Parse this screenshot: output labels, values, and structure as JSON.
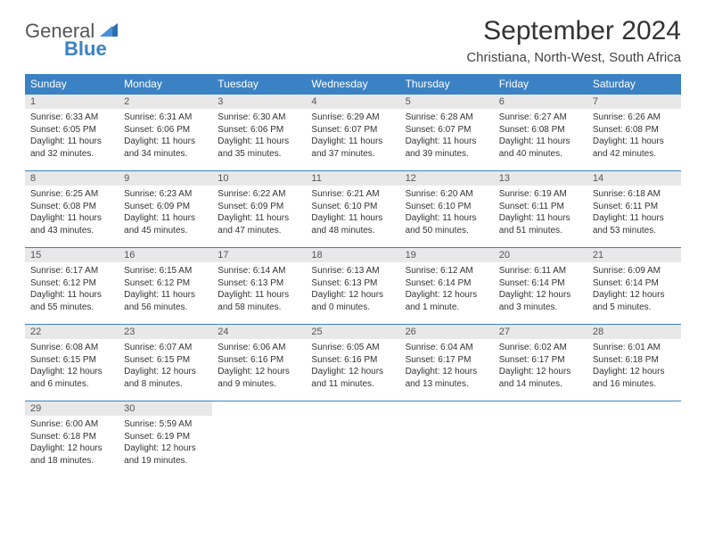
{
  "logo": {
    "primary": "General",
    "secondary": "Blue"
  },
  "title": "September 2024",
  "location": "Christiana, North-West, South Africa",
  "colors": {
    "header_bg": "#3b82c4",
    "header_text": "#ffffff",
    "daynum_bg": "#e8e8e8",
    "border": "#3b82c4",
    "text": "#333333",
    "background": "#ffffff"
  },
  "weekdays": [
    "Sunday",
    "Monday",
    "Tuesday",
    "Wednesday",
    "Thursday",
    "Friday",
    "Saturday"
  ],
  "weeks": [
    [
      {
        "n": "1",
        "sunrise": "Sunrise: 6:33 AM",
        "sunset": "Sunset: 6:05 PM",
        "day1": "Daylight: 11 hours",
        "day2": "and 32 minutes."
      },
      {
        "n": "2",
        "sunrise": "Sunrise: 6:31 AM",
        "sunset": "Sunset: 6:06 PM",
        "day1": "Daylight: 11 hours",
        "day2": "and 34 minutes."
      },
      {
        "n": "3",
        "sunrise": "Sunrise: 6:30 AM",
        "sunset": "Sunset: 6:06 PM",
        "day1": "Daylight: 11 hours",
        "day2": "and 35 minutes."
      },
      {
        "n": "4",
        "sunrise": "Sunrise: 6:29 AM",
        "sunset": "Sunset: 6:07 PM",
        "day1": "Daylight: 11 hours",
        "day2": "and 37 minutes."
      },
      {
        "n": "5",
        "sunrise": "Sunrise: 6:28 AM",
        "sunset": "Sunset: 6:07 PM",
        "day1": "Daylight: 11 hours",
        "day2": "and 39 minutes."
      },
      {
        "n": "6",
        "sunrise": "Sunrise: 6:27 AM",
        "sunset": "Sunset: 6:08 PM",
        "day1": "Daylight: 11 hours",
        "day2": "and 40 minutes."
      },
      {
        "n": "7",
        "sunrise": "Sunrise: 6:26 AM",
        "sunset": "Sunset: 6:08 PM",
        "day1": "Daylight: 11 hours",
        "day2": "and 42 minutes."
      }
    ],
    [
      {
        "n": "8",
        "sunrise": "Sunrise: 6:25 AM",
        "sunset": "Sunset: 6:08 PM",
        "day1": "Daylight: 11 hours",
        "day2": "and 43 minutes."
      },
      {
        "n": "9",
        "sunrise": "Sunrise: 6:23 AM",
        "sunset": "Sunset: 6:09 PM",
        "day1": "Daylight: 11 hours",
        "day2": "and 45 minutes."
      },
      {
        "n": "10",
        "sunrise": "Sunrise: 6:22 AM",
        "sunset": "Sunset: 6:09 PM",
        "day1": "Daylight: 11 hours",
        "day2": "and 47 minutes."
      },
      {
        "n": "11",
        "sunrise": "Sunrise: 6:21 AM",
        "sunset": "Sunset: 6:10 PM",
        "day1": "Daylight: 11 hours",
        "day2": "and 48 minutes."
      },
      {
        "n": "12",
        "sunrise": "Sunrise: 6:20 AM",
        "sunset": "Sunset: 6:10 PM",
        "day1": "Daylight: 11 hours",
        "day2": "and 50 minutes."
      },
      {
        "n": "13",
        "sunrise": "Sunrise: 6:19 AM",
        "sunset": "Sunset: 6:11 PM",
        "day1": "Daylight: 11 hours",
        "day2": "and 51 minutes."
      },
      {
        "n": "14",
        "sunrise": "Sunrise: 6:18 AM",
        "sunset": "Sunset: 6:11 PM",
        "day1": "Daylight: 11 hours",
        "day2": "and 53 minutes."
      }
    ],
    [
      {
        "n": "15",
        "sunrise": "Sunrise: 6:17 AM",
        "sunset": "Sunset: 6:12 PM",
        "day1": "Daylight: 11 hours",
        "day2": "and 55 minutes."
      },
      {
        "n": "16",
        "sunrise": "Sunrise: 6:15 AM",
        "sunset": "Sunset: 6:12 PM",
        "day1": "Daylight: 11 hours",
        "day2": "and 56 minutes."
      },
      {
        "n": "17",
        "sunrise": "Sunrise: 6:14 AM",
        "sunset": "Sunset: 6:13 PM",
        "day1": "Daylight: 11 hours",
        "day2": "and 58 minutes."
      },
      {
        "n": "18",
        "sunrise": "Sunrise: 6:13 AM",
        "sunset": "Sunset: 6:13 PM",
        "day1": "Daylight: 12 hours",
        "day2": "and 0 minutes."
      },
      {
        "n": "19",
        "sunrise": "Sunrise: 6:12 AM",
        "sunset": "Sunset: 6:14 PM",
        "day1": "Daylight: 12 hours",
        "day2": "and 1 minute."
      },
      {
        "n": "20",
        "sunrise": "Sunrise: 6:11 AM",
        "sunset": "Sunset: 6:14 PM",
        "day1": "Daylight: 12 hours",
        "day2": "and 3 minutes."
      },
      {
        "n": "21",
        "sunrise": "Sunrise: 6:09 AM",
        "sunset": "Sunset: 6:14 PM",
        "day1": "Daylight: 12 hours",
        "day2": "and 5 minutes."
      }
    ],
    [
      {
        "n": "22",
        "sunrise": "Sunrise: 6:08 AM",
        "sunset": "Sunset: 6:15 PM",
        "day1": "Daylight: 12 hours",
        "day2": "and 6 minutes."
      },
      {
        "n": "23",
        "sunrise": "Sunrise: 6:07 AM",
        "sunset": "Sunset: 6:15 PM",
        "day1": "Daylight: 12 hours",
        "day2": "and 8 minutes."
      },
      {
        "n": "24",
        "sunrise": "Sunrise: 6:06 AM",
        "sunset": "Sunset: 6:16 PM",
        "day1": "Daylight: 12 hours",
        "day2": "and 9 minutes."
      },
      {
        "n": "25",
        "sunrise": "Sunrise: 6:05 AM",
        "sunset": "Sunset: 6:16 PM",
        "day1": "Daylight: 12 hours",
        "day2": "and 11 minutes."
      },
      {
        "n": "26",
        "sunrise": "Sunrise: 6:04 AM",
        "sunset": "Sunset: 6:17 PM",
        "day1": "Daylight: 12 hours",
        "day2": "and 13 minutes."
      },
      {
        "n": "27",
        "sunrise": "Sunrise: 6:02 AM",
        "sunset": "Sunset: 6:17 PM",
        "day1": "Daylight: 12 hours",
        "day2": "and 14 minutes."
      },
      {
        "n": "28",
        "sunrise": "Sunrise: 6:01 AM",
        "sunset": "Sunset: 6:18 PM",
        "day1": "Daylight: 12 hours",
        "day2": "and 16 minutes."
      }
    ],
    [
      {
        "n": "29",
        "sunrise": "Sunrise: 6:00 AM",
        "sunset": "Sunset: 6:18 PM",
        "day1": "Daylight: 12 hours",
        "day2": "and 18 minutes."
      },
      {
        "n": "30",
        "sunrise": "Sunrise: 5:59 AM",
        "sunset": "Sunset: 6:19 PM",
        "day1": "Daylight: 12 hours",
        "day2": "and 19 minutes."
      },
      null,
      null,
      null,
      null,
      null
    ]
  ]
}
